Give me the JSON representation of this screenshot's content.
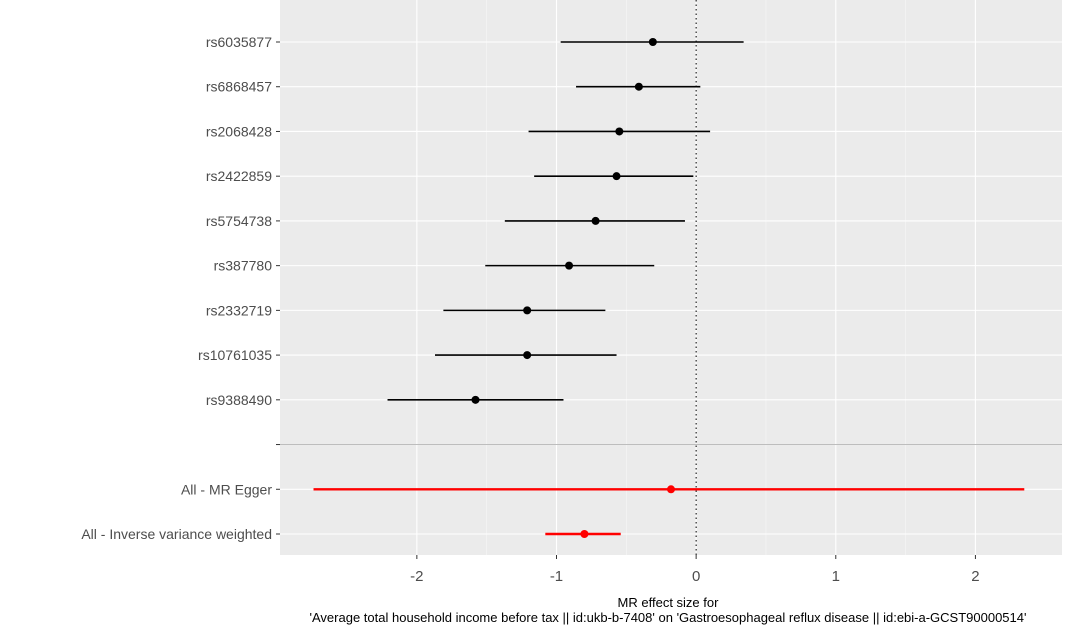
{
  "chart_data": {
    "type": "forest",
    "xlabel_line1": "MR effect size for",
    "xlabel_line2": "'Average total household income before tax || id:ukb-b-7408' on 'Gastroesophageal reflux disease || id:ebi-a-GCST90000514'",
    "x_ticks": [
      "-2",
      "-1",
      "0",
      "1",
      "2"
    ],
    "x_tick_values": [
      -2,
      -1,
      0,
      1,
      2
    ],
    "xlim": [
      -2.98,
      2.62
    ],
    "reference_line": 0,
    "grid": true,
    "background_color": "#ebebeb",
    "snp_color": "#000000",
    "summary_color": "#ff0000",
    "snps": [
      {
        "label": "rs6035877",
        "estimate": -0.31,
        "lower": -0.97,
        "upper": 0.34
      },
      {
        "label": "rs6868457",
        "estimate": -0.41,
        "lower": -0.86,
        "upper": 0.03
      },
      {
        "label": "rs2068428",
        "estimate": -0.55,
        "lower": -1.2,
        "upper": 0.1
      },
      {
        "label": "rs2422859",
        "estimate": -0.57,
        "lower": -1.16,
        "upper": -0.02
      },
      {
        "label": "rs5754738",
        "estimate": -0.72,
        "lower": -1.37,
        "upper": -0.08
      },
      {
        "label": "rs387780",
        "estimate": -0.91,
        "lower": -1.51,
        "upper": -0.3
      },
      {
        "label": "rs2332719",
        "estimate": -1.21,
        "lower": -1.81,
        "upper": -0.65
      },
      {
        "label": "rs10761035",
        "estimate": -1.21,
        "lower": -1.87,
        "upper": -0.57
      },
      {
        "label": "rs9388490",
        "estimate": -1.58,
        "lower": -2.21,
        "upper": -0.95
      }
    ],
    "separator_label": "",
    "summary": [
      {
        "label": "All - MR Egger",
        "estimate": -0.18,
        "lower": -2.74,
        "upper": 2.35
      },
      {
        "label": "All - Inverse variance weighted",
        "estimate": -0.8,
        "lower": -1.08,
        "upper": -0.54
      }
    ]
  }
}
